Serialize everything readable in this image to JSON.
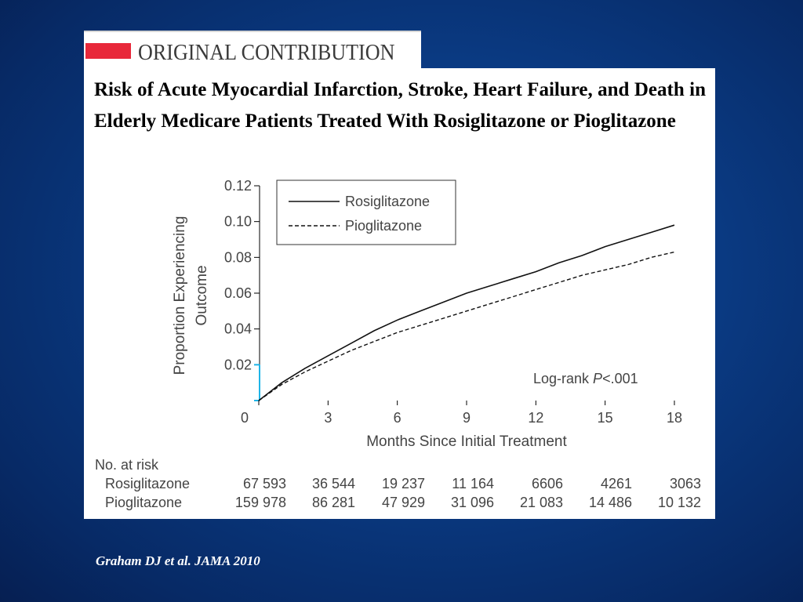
{
  "header": {
    "label": "ORIGINAL CONTRIBUTION",
    "accent_color": "#e8283a"
  },
  "title": "Risk of Acute Myocardial Infarction, Stroke, Heart Failure, and Death in Elderly Medicare Patients Treated With Rosiglitazone or Pioglitazone",
  "citation": "Graham DJ et al. JAMA 2010",
  "chart_data": {
    "type": "line",
    "title": "",
    "xlabel": "Months Since Initial Treatment",
    "ylabel_lines": [
      "Proportion Experiencing",
      "Outcome"
    ],
    "xlim": [
      0,
      18
    ],
    "ylim": [
      0,
      0.12
    ],
    "x_ticks": [
      0,
      3,
      6,
      9,
      12,
      15,
      18
    ],
    "x_tick_labels": [
      "0",
      "3",
      "6",
      "9",
      "12",
      "15",
      "18"
    ],
    "y_ticks": [
      0.02,
      0.04,
      0.06,
      0.08,
      0.1,
      0.12
    ],
    "y_tick_labels": [
      "0.02",
      "0.04",
      "0.06",
      "0.08",
      "0.10",
      "0.12"
    ],
    "legend_position": "top-left",
    "annotation": {
      "prefix": "Log-rank ",
      "italic": "P",
      "suffix": "<.001"
    },
    "series": [
      {
        "name": "Rosiglitazone",
        "style": "solid",
        "x": [
          0,
          1,
          2,
          3,
          4,
          5,
          6,
          7,
          8,
          9,
          10,
          11,
          12,
          13,
          14,
          15,
          16,
          17,
          18
        ],
        "y": [
          0,
          0.01,
          0.018,
          0.025,
          0.032,
          0.039,
          0.045,
          0.05,
          0.055,
          0.06,
          0.064,
          0.068,
          0.072,
          0.077,
          0.081,
          0.086,
          0.09,
          0.094,
          0.098
        ]
      },
      {
        "name": "Pioglitazone",
        "style": "dashed",
        "x": [
          0,
          1,
          2,
          3,
          4,
          5,
          6,
          7,
          8,
          9,
          10,
          11,
          12,
          13,
          14,
          15,
          16,
          17,
          18
        ],
        "y": [
          0,
          0.009,
          0.016,
          0.022,
          0.028,
          0.033,
          0.038,
          0.042,
          0.046,
          0.05,
          0.054,
          0.058,
          0.062,
          0.066,
          0.07,
          0.073,
          0.076,
          0.08,
          0.083
        ]
      }
    ],
    "risk_table": {
      "header": "No. at risk",
      "rows": [
        {
          "label": "Rosiglitazone",
          "values": [
            "67 593",
            "36 544",
            "19 237",
            "11 164",
            "6606",
            "4261",
            "3063"
          ]
        },
        {
          "label": "Pioglitazone",
          "values": [
            "159 978",
            "86 281",
            "47 929",
            "31 096",
            "21 083",
            "14 486",
            "10 132"
          ]
        }
      ]
    },
    "axis_accent_color": "#1fb5e8"
  }
}
